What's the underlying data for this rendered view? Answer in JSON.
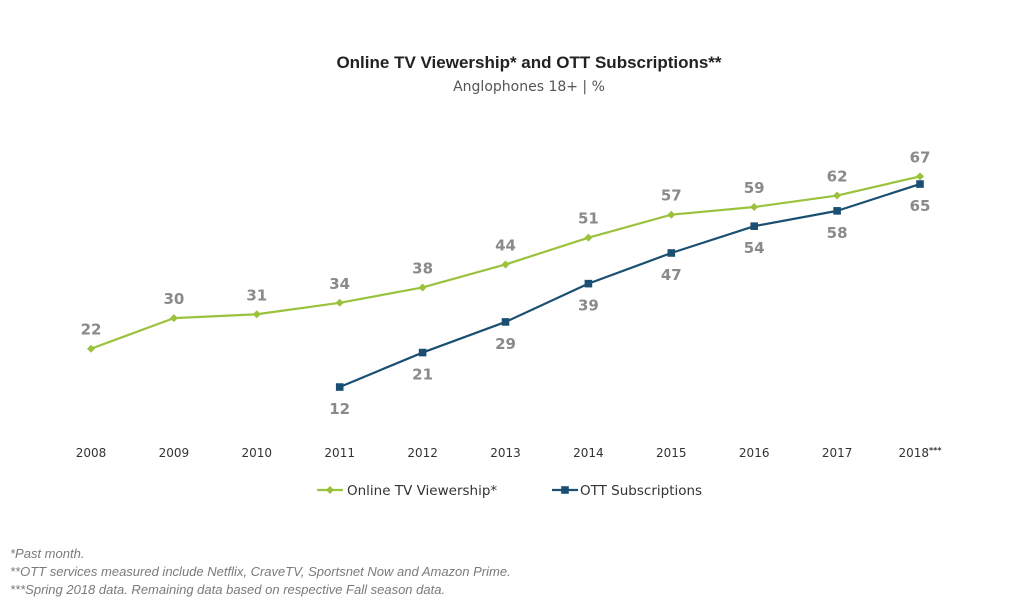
{
  "chart_data": {
    "type": "line",
    "title": "Online TV Viewership* and OTT Subscriptions**",
    "subtitle": "Anglophones 18+ | %",
    "xlabel": "",
    "ylabel": "",
    "ylim": [
      0,
      75
    ],
    "grid": false,
    "legend_position": "bottom-center",
    "categories": [
      "2008",
      "2009",
      "2010",
      "2011",
      "2012",
      "2013",
      "2014",
      "2015",
      "2016",
      "2017",
      "2018"
    ],
    "category_suffix": {
      "2018": "***"
    },
    "series": [
      {
        "name": "Online TV Viewership*",
        "color": "#9bc23c",
        "marker": "diamond",
        "label_position": "above",
        "values": [
          22,
          30,
          31,
          34,
          38,
          44,
          51,
          57,
          59,
          62,
          67
        ]
      },
      {
        "name": "OTT Subscriptions",
        "color": "#1b4f72",
        "marker": "square",
        "label_position": "below",
        "values": [
          null,
          null,
          null,
          12,
          21,
          29,
          39,
          47,
          54,
          58,
          65
        ]
      }
    ]
  },
  "footnotes": [
    "*Past month.",
    "**OTT services measured include Netflix, CraveTV, Sportsnet Now and Amazon Prime.",
    "***Spring 2018 data. Remaining data based on respective Fall season data."
  ]
}
